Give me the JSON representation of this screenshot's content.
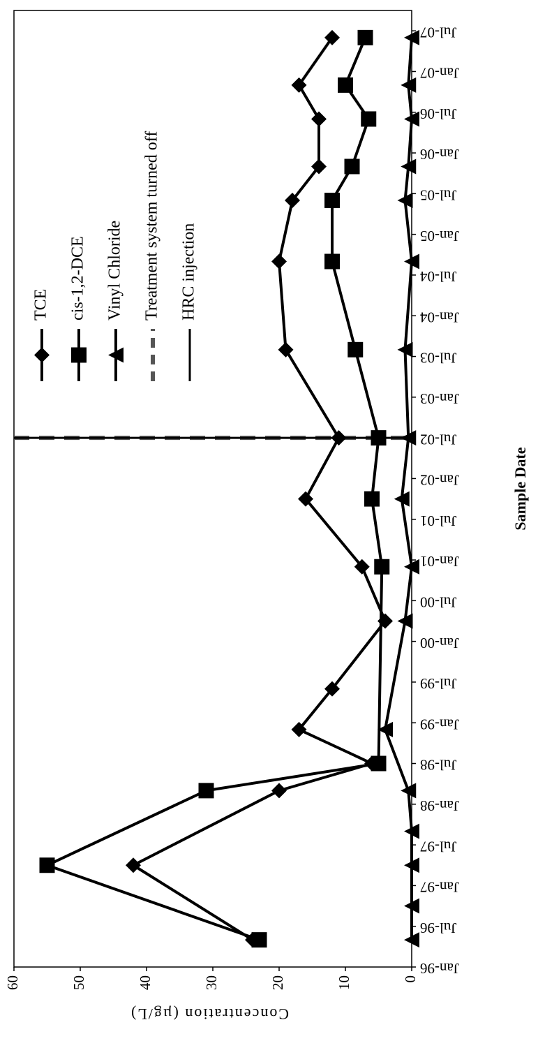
{
  "chart_data": {
    "type": "line",
    "x_label": "Sample Date",
    "y_label": "Concentration (µg/L)",
    "xlim": [
      "1996-01",
      "2007-10"
    ],
    "xticks": [
      {
        "value": "1996-01",
        "label": "Jan-96"
      },
      {
        "value": "1996-07",
        "label": "Jul-96"
      },
      {
        "value": "1997-01",
        "label": "Jan-97"
      },
      {
        "value": "1997-07",
        "label": "Jul-97"
      },
      {
        "value": "1998-01",
        "label": "Jan-98"
      },
      {
        "value": "1998-07",
        "label": "Jul-98"
      },
      {
        "value": "1999-01",
        "label": "Jan-99"
      },
      {
        "value": "1999-07",
        "label": "Jul-99"
      },
      {
        "value": "2000-01",
        "label": "Jan-00"
      },
      {
        "value": "2000-07",
        "label": "Jul-00"
      },
      {
        "value": "2001-01",
        "label": "Jan-01"
      },
      {
        "value": "2001-07",
        "label": "Jul-01"
      },
      {
        "value": "2002-01",
        "label": "Jan-02"
      },
      {
        "value": "2002-07",
        "label": "Jul-02"
      },
      {
        "value": "2003-01",
        "label": "Jan-03"
      },
      {
        "value": "2003-07",
        "label": "Jul-03"
      },
      {
        "value": "2004-01",
        "label": "Jan-04"
      },
      {
        "value": "2004-07",
        "label": "Jul-04"
      },
      {
        "value": "2005-01",
        "label": "Jan-05"
      },
      {
        "value": "2005-07",
        "label": "Jul-05"
      },
      {
        "value": "2006-01",
        "label": "Jan-06"
      },
      {
        "value": "2006-07",
        "label": "Jul-06"
      },
      {
        "value": "2007-01",
        "label": "Jan-07"
      },
      {
        "value": "2007-07",
        "label": "Jul-07"
      }
    ],
    "ylim": [
      0,
      60
    ],
    "yticks": [
      0,
      10,
      20,
      30,
      40,
      50,
      60
    ],
    "grid": false,
    "legend": "top-right",
    "series": [
      {
        "name": "TCE",
        "color": "#000000",
        "marker": "diamond",
        "x": [
          "1996-05",
          "1997-04",
          "1998-03",
          "1998-07",
          "1998-12",
          "1999-06",
          "2000-04",
          "2000-12",
          "2001-10",
          "2002-07",
          "2003-08",
          "2004-09",
          "2005-06",
          "2005-11",
          "2006-06",
          "2006-11",
          "2007-06"
        ],
        "values": [
          24,
          42,
          20,
          6,
          17,
          12,
          4,
          7.5,
          16,
          11,
          19,
          20,
          18,
          14,
          14,
          17,
          12
        ]
      },
      {
        "name": "cis-1,2-DCE",
        "color": "#000000",
        "marker": "square",
        "x": [
          "1996-05",
          "1997-04",
          "1998-03",
          "1998-07",
          "2000-12",
          "2001-10",
          "2002-07",
          "2003-08",
          "2004-09",
          "2005-06",
          "2005-11",
          "2006-06",
          "2006-11",
          "2007-06"
        ],
        "values": [
          23,
          55,
          31,
          5,
          4.5,
          6,
          5,
          8.5,
          12,
          12,
          9,
          6.5,
          10,
          7
        ]
      },
      {
        "name": "Vinyl Chloride",
        "color": "#000000",
        "marker": "triangle",
        "x": [
          "1996-05",
          "1996-10",
          "1997-04",
          "1997-09",
          "1998-03",
          "1998-12",
          "2000-04",
          "2000-12",
          "2001-10",
          "2002-07",
          "2003-08",
          "2004-09",
          "2005-06",
          "2005-11",
          "2006-06",
          "2006-11",
          "2007-06"
        ],
        "values": [
          0,
          0,
          0,
          0,
          0.5,
          4,
          1,
          0,
          1.5,
          0.5,
          1,
          0,
          1,
          0.5,
          0,
          0.5,
          0
        ]
      }
    ],
    "events": [
      {
        "name": "Treatment system turned off",
        "x": "2002-07",
        "style": "dashed",
        "color": "#555555"
      },
      {
        "name": "HRC injection",
        "x": "2002-07",
        "style": "solid",
        "color": "#000000"
      }
    ]
  }
}
